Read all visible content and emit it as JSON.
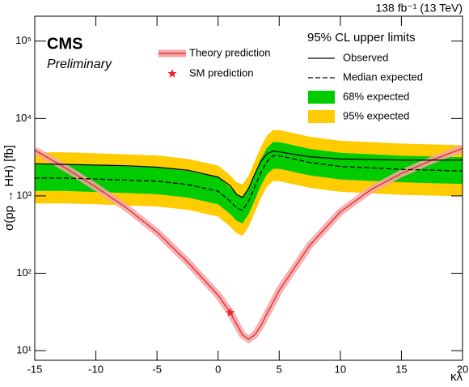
{
  "chart_data": {
    "type": "line",
    "title": "CMS",
    "subtitle": "Preliminary",
    "lumi": "138 fb⁻¹ (13 TeV)",
    "legend_title": "95% CL upper limits",
    "xlabel": "κλ",
    "ylabel": "σ(pp → HH) [fb]",
    "log_y": true,
    "xlim": [
      -15,
      20
    ],
    "ylim": [
      7.5,
      210000
    ],
    "xticks": [
      -15,
      -10,
      -5,
      0,
      5,
      10,
      15,
      20
    ],
    "yticks": [
      {
        "value": 10,
        "label": "10¹"
      },
      {
        "value": 100,
        "label": "10²"
      },
      {
        "value": 1000,
        "label": "10³"
      },
      {
        "value": 10000,
        "label": "10⁴"
      },
      {
        "value": 100000,
        "label": "10⁵"
      }
    ],
    "x": [
      -15,
      -12.5,
      -10,
      -7.5,
      -5,
      -2.5,
      0,
      1,
      1.5,
      2,
      2.5,
      3,
      3.5,
      4,
      4.5,
      5,
      7.5,
      10,
      12.5,
      15,
      17.5,
      20
    ],
    "bands": [
      {
        "name": "95% expected",
        "color": "#ffcc00",
        "lower": [
          800,
          800,
          780,
          750,
          730,
          660,
          540,
          400,
          330,
          305,
          400,
          610,
          940,
          1320,
          1550,
          1550,
          1270,
          1130,
          1080,
          1030,
          1010,
          990
        ],
        "upper": [
          3660,
          3660,
          3550,
          3440,
          3330,
          3010,
          2470,
          1830,
          1510,
          1400,
          1830,
          2800,
          4300,
          6000,
          7100,
          7100,
          5800,
          5160,
          4950,
          4730,
          4620,
          4520
        ]
      },
      {
        "name": "68% expected",
        "color": "#00cc00",
        "lower": [
          1160,
          1160,
          1120,
          1090,
          1050,
          950,
          780,
          580,
          480,
          440,
          580,
          880,
          1360,
          1900,
          2240,
          2240,
          1840,
          1630,
          1560,
          1500,
          1460,
          1430
        ],
        "upper": [
          2550,
          2550,
          2480,
          2400,
          2330,
          2100,
          1730,
          1280,
          1050,
          980,
          1280,
          1950,
          3000,
          4200,
          4950,
          4950,
          4050,
          3600,
          3450,
          3300,
          3230,
          3150
        ]
      }
    ],
    "series": [
      {
        "name": "Observed",
        "color": "#000000",
        "dashed": false,
        "values": [
          2600,
          2550,
          2500,
          2450,
          2350,
          2150,
          1750,
          1350,
          1050,
          950,
          1250,
          1900,
          2800,
          3500,
          3800,
          3700,
          3200,
          3000,
          2950,
          2900,
          2900,
          2900
        ]
      },
      {
        "name": "Median expected",
        "color": "#000000",
        "dashed": true,
        "values": [
          1700,
          1700,
          1650,
          1600,
          1550,
          1400,
          1150,
          850,
          700,
          650,
          850,
          1300,
          2000,
          2800,
          3300,
          3300,
          2700,
          2400,
          2300,
          2200,
          2150,
          2100
        ]
      }
    ],
    "theory": {
      "name": "Theory prediction",
      "color": "#e8262b",
      "band_color": "#f4a6a8",
      "values": [
        3900,
        2300,
        1300,
        700,
        340,
        140,
        52,
        31,
        22,
        16,
        14,
        16,
        21,
        30,
        42,
        60,
        230,
        620,
        1200,
        1950,
        2900,
        4100
      ]
    },
    "sm": {
      "name": "SM prediction",
      "color": "#e8262b",
      "x": 1,
      "y": 31
    }
  }
}
